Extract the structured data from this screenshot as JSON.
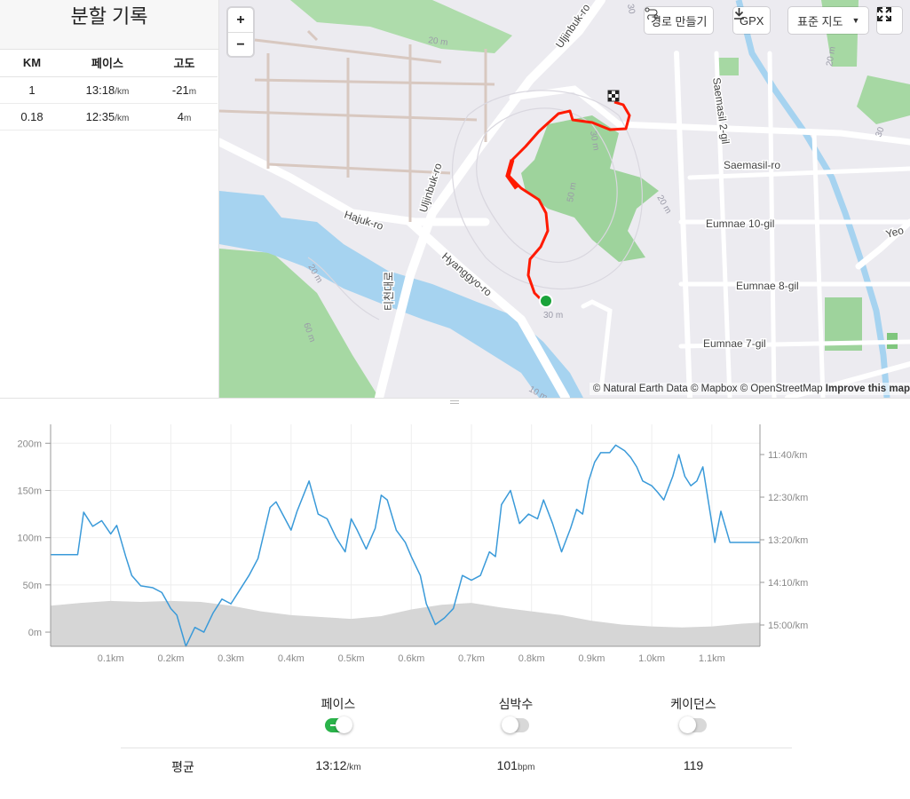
{
  "splits": {
    "title": "분할 기록",
    "headers": [
      "KM",
      "페이스",
      "고도"
    ],
    "rows": [
      {
        "km": "1",
        "pace": "13:18",
        "pace_unit": "/km",
        "elev": "-21",
        "elev_unit": "m"
      },
      {
        "km": "0.18",
        "pace": "12:35",
        "pace_unit": "/km",
        "elev": "4",
        "elev_unit": "m"
      }
    ]
  },
  "map": {
    "zoom_in": "+",
    "zoom_out": "−",
    "create_route_label": "경로 만들기",
    "gpx_label": "GPX",
    "map_style_label": "표준 지도",
    "attribution": "© Natural Earth Data © Mapbox © OpenStreetMap",
    "improve_label": "Improve this map",
    "street_labels": [
      "Uljinbuk-ro",
      "Uljinbuk-ro",
      "Hajuk-ro",
      "Hyanggyo-ro",
      "티천대로",
      "Saemasil 2-gil",
      "Saemasil-ro",
      "Eumnae 10-gil",
      "Eumnae 8-gil",
      "Eumnae 7-gil",
      "Yeo"
    ],
    "contour_labels": [
      "20 m",
      "30",
      "30 m",
      "50 m",
      "20 m",
      "30 m",
      "60 m",
      "10 m",
      "20 m",
      "30",
      "20 m"
    ],
    "colors": {
      "route": "#ff1a00",
      "start": "#1aa33a",
      "park": "#9ad49a",
      "water": "#a6d3f0",
      "land": "#ecebf0"
    }
  },
  "chart_data": {
    "type": "line",
    "x_ticks": [
      "0.1km",
      "0.2km",
      "0.3km",
      "0.4km",
      "0.5km",
      "0.6km",
      "0.7km",
      "0.8km",
      "0.9km",
      "1.0km",
      "1.1km"
    ],
    "y_left_ticks": [
      "200m",
      "150m",
      "100m",
      "50m",
      "0m"
    ],
    "y_right_ticks": [
      "11:40/km",
      "12:30/km",
      "13:20/km",
      "14:10/km",
      "15:00/km"
    ],
    "xlim": [
      0,
      1.18
    ],
    "ylim": [
      -15,
      220
    ],
    "grid": true,
    "series": [
      {
        "kind": "area",
        "color": "#d6d6d6",
        "x": [
          0,
          0.05,
          0.1,
          0.15,
          0.2,
          0.25,
          0.3,
          0.35,
          0.4,
          0.45,
          0.5,
          0.55,
          0.6,
          0.65,
          0.7,
          0.75,
          0.8,
          0.85,
          0.9,
          0.95,
          1.0,
          1.05,
          1.1,
          1.15,
          1.18
        ],
        "y": [
          28,
          31,
          33,
          32,
          33,
          32,
          28,
          22,
          18,
          16,
          14,
          17,
          24,
          29,
          31,
          26,
          22,
          18,
          12,
          8,
          6,
          5,
          6,
          9,
          10
        ]
      },
      {
        "kind": "line",
        "color": "#3a9ad9",
        "x": [
          0,
          0.045,
          0.055,
          0.07,
          0.085,
          0.1,
          0.11,
          0.125,
          0.135,
          0.15,
          0.17,
          0.185,
          0.2,
          0.21,
          0.225,
          0.24,
          0.255,
          0.27,
          0.285,
          0.3,
          0.315,
          0.33,
          0.345,
          0.365,
          0.375,
          0.39,
          0.4,
          0.41,
          0.43,
          0.445,
          0.46,
          0.475,
          0.49,
          0.5,
          0.51,
          0.525,
          0.54,
          0.55,
          0.56,
          0.575,
          0.59,
          0.6,
          0.615,
          0.625,
          0.64,
          0.655,
          0.67,
          0.685,
          0.7,
          0.715,
          0.73,
          0.74,
          0.75,
          0.765,
          0.78,
          0.795,
          0.81,
          0.82,
          0.835,
          0.85,
          0.865,
          0.875,
          0.885,
          0.895,
          0.905,
          0.915,
          0.93,
          0.94,
          0.955,
          0.965,
          0.975,
          0.985,
          1.0,
          1.01,
          1.02,
          1.035,
          1.045,
          1.055,
          1.065,
          1.075,
          1.085,
          1.095,
          1.105,
          1.115,
          1.13,
          1.18
        ],
        "y": [
          82,
          82,
          127,
          112,
          118,
          104,
          113,
          80,
          60,
          49,
          47,
          42,
          25,
          18,
          -15,
          5,
          0,
          20,
          35,
          30,
          45,
          60,
          78,
          132,
          138,
          120,
          108,
          128,
          160,
          125,
          120,
          100,
          85,
          120,
          108,
          88,
          110,
          145,
          140,
          108,
          95,
          80,
          60,
          30,
          8,
          15,
          25,
          60,
          55,
          60,
          85,
          80,
          135,
          150,
          115,
          125,
          120,
          140,
          115,
          85,
          110,
          130,
          125,
          160,
          180,
          190,
          190,
          198,
          192,
          185,
          175,
          160,
          155,
          148,
          140,
          165,
          188,
          165,
          155,
          160,
          175,
          135,
          95,
          128,
          95,
          95
        ]
      }
    ]
  },
  "stats": {
    "toggles": [
      {
        "label": "페이스",
        "on": true
      },
      {
        "label": "심박수",
        "on": false
      },
      {
        "label": "케이던스",
        "on": false
      }
    ],
    "avg_label": "평균",
    "pace_value": "13:12",
    "pace_unit": "/km",
    "hr_value": "101",
    "hr_unit": "bpm",
    "cadence_value": "119"
  }
}
